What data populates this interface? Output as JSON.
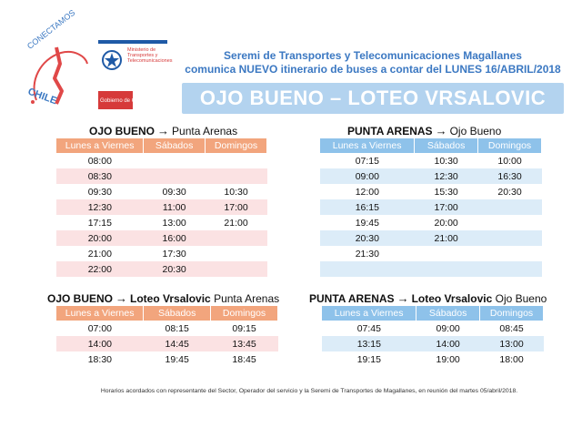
{
  "logos": {
    "conectamos": "CONECTAMOS",
    "chile": "CHILE",
    "ministry_line1": "Ministerio de",
    "ministry_line2": "Transportes y",
    "ministry_line3": "Telecomunicaciones",
    "gobierno": "Gobierno de Chile"
  },
  "header": {
    "line1": "Seremi de Transportes y Telecomunicaciones Magallanes",
    "line2": "comunica NUEVO itinerario de buses a contar del LUNES 16/ABRIL/2018"
  },
  "title": "OJO BUENO – LOTEO VRSALOVIC",
  "tables": {
    "t1": {
      "origin": "OJO BUENO",
      "arrow": "→",
      "via": "",
      "destination": "Punta Arenas",
      "headers": [
        "Lunes a Viernes",
        "Sábados",
        "Domingos"
      ],
      "rows": [
        [
          "08:00",
          "",
          ""
        ],
        [
          "08:30",
          "",
          ""
        ],
        [
          "09:30",
          "09:30",
          "10:30"
        ],
        [
          "12:30",
          "11:00",
          "17:00"
        ],
        [
          "17:15",
          "13:00",
          "21:00"
        ],
        [
          "20:00",
          "16:00",
          ""
        ],
        [
          "21:00",
          "17:30",
          ""
        ],
        [
          "22:00",
          "20:30",
          ""
        ]
      ]
    },
    "t2": {
      "origin": "PUNTA ARENAS",
      "arrow": "→",
      "via": "",
      "destination": "Ojo Bueno",
      "headers": [
        "Lunes a Viernes",
        "Sábados",
        "Domingos"
      ],
      "rows": [
        [
          "07:15",
          "10:30",
          "10:00"
        ],
        [
          "09:00",
          "12:30",
          "16:30"
        ],
        [
          "12:00",
          "15:30",
          "20:30"
        ],
        [
          "16:15",
          "17:00",
          ""
        ],
        [
          "19:45",
          "20:00",
          ""
        ],
        [
          "20:30",
          "21:00",
          ""
        ],
        [
          "21:30",
          "",
          ""
        ],
        [
          "",
          "",
          ""
        ]
      ]
    },
    "t3": {
      "origin": "OJO BUENO",
      "arrow": "→",
      "via": "Loteo Vrsalovic",
      "destination": "Punta Arenas",
      "headers": [
        "Lunes a Viernes",
        "Sábados",
        "Domingos"
      ],
      "rows": [
        [
          "07:00",
          "08:15",
          "09:15"
        ],
        [
          "14:00",
          "14:45",
          "13:45"
        ],
        [
          "18:30",
          "19:45",
          "18:45"
        ]
      ]
    },
    "t4": {
      "origin": "PUNTA ARENAS",
      "arrow": "→",
      "via": "Loteo Vrsalovic",
      "destination": "Ojo Bueno",
      "headers": [
        "Lunes a Viernes",
        "Sábados",
        "Domingos"
      ],
      "rows": [
        [
          "07:45",
          "09:00",
          "08:45"
        ],
        [
          "13:15",
          "14:00",
          "13:00"
        ],
        [
          "19:15",
          "19:00",
          "18:00"
        ]
      ]
    }
  },
  "footnote": "Horarios acordados con representante del Sector, Operador del servicio y la Seremi de Transportes de Magallanes, en reunión del martes 05/abril/2018."
}
